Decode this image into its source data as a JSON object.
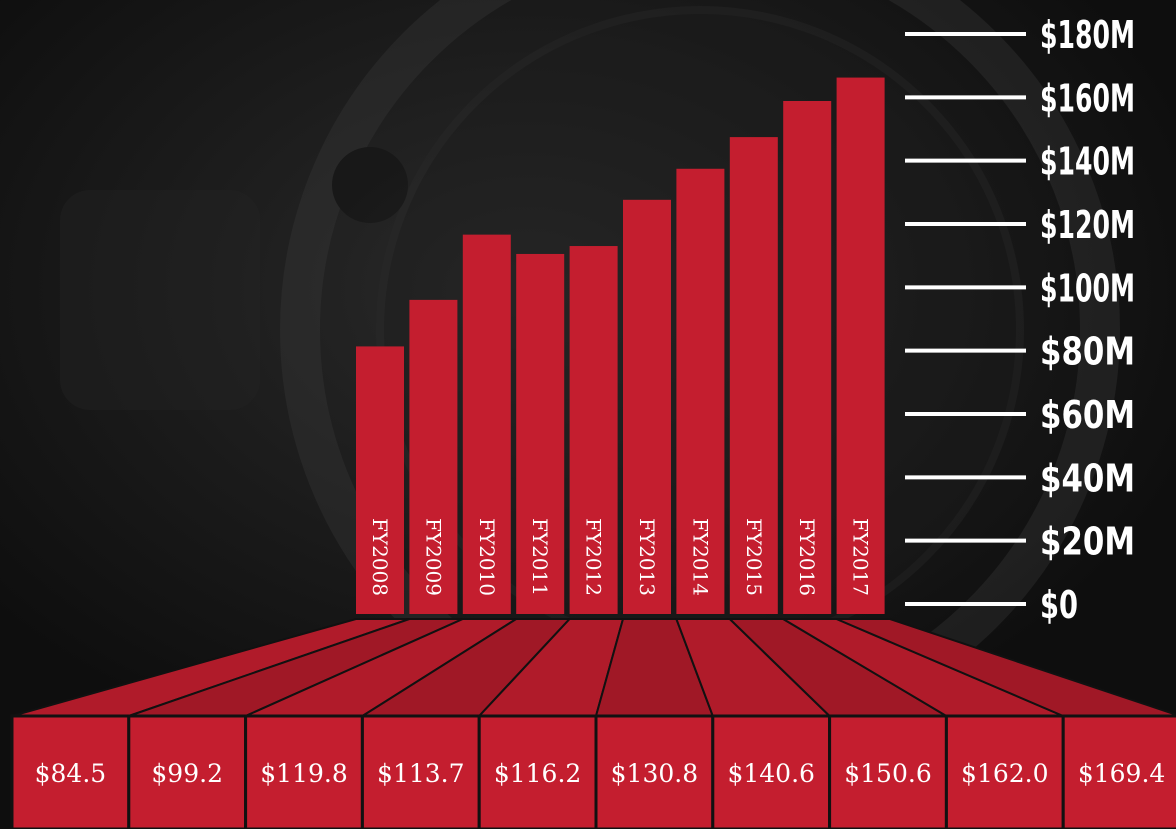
{
  "chart_data": {
    "type": "bar",
    "title": "",
    "xlabel": "",
    "ylabel": "",
    "categories": [
      "FY2008",
      "FY2009",
      "FY2010",
      "FY2011",
      "FY2012",
      "FY2013",
      "FY2014",
      "FY2015",
      "FY2016",
      "FY2017"
    ],
    "values": [
      84.5,
      99.2,
      119.8,
      113.7,
      116.2,
      130.8,
      140.6,
      150.6,
      162.0,
      169.4
    ],
    "value_labels": [
      "$84.5",
      "$99.2",
      "$119.8",
      "$113.7",
      "$116.2",
      "$130.8",
      "$140.6",
      "$150.6",
      "$162.0",
      "$169.4"
    ],
    "ylim": [
      0,
      180
    ],
    "yticks": [
      {
        "value": 0,
        "label": "$0"
      },
      {
        "value": 20,
        "label": "$20M"
      },
      {
        "value": 40,
        "label": "$40M"
      },
      {
        "value": 60,
        "label": "$60M"
      },
      {
        "value": 80,
        "label": "$80M"
      },
      {
        "value": 100,
        "label": "$100M"
      },
      {
        "value": 120,
        "label": "$120M"
      },
      {
        "value": 140,
        "label": "$140M"
      },
      {
        "value": 160,
        "label": "$160M"
      },
      {
        "value": 180,
        "label": "$180M"
      }
    ],
    "grid": false,
    "axis_side": "right",
    "legend": "none",
    "colors": {
      "bar": "#c41e2f",
      "background": "#141414",
      "text": "#ffffff",
      "tick_line": "#ffffff"
    }
  }
}
